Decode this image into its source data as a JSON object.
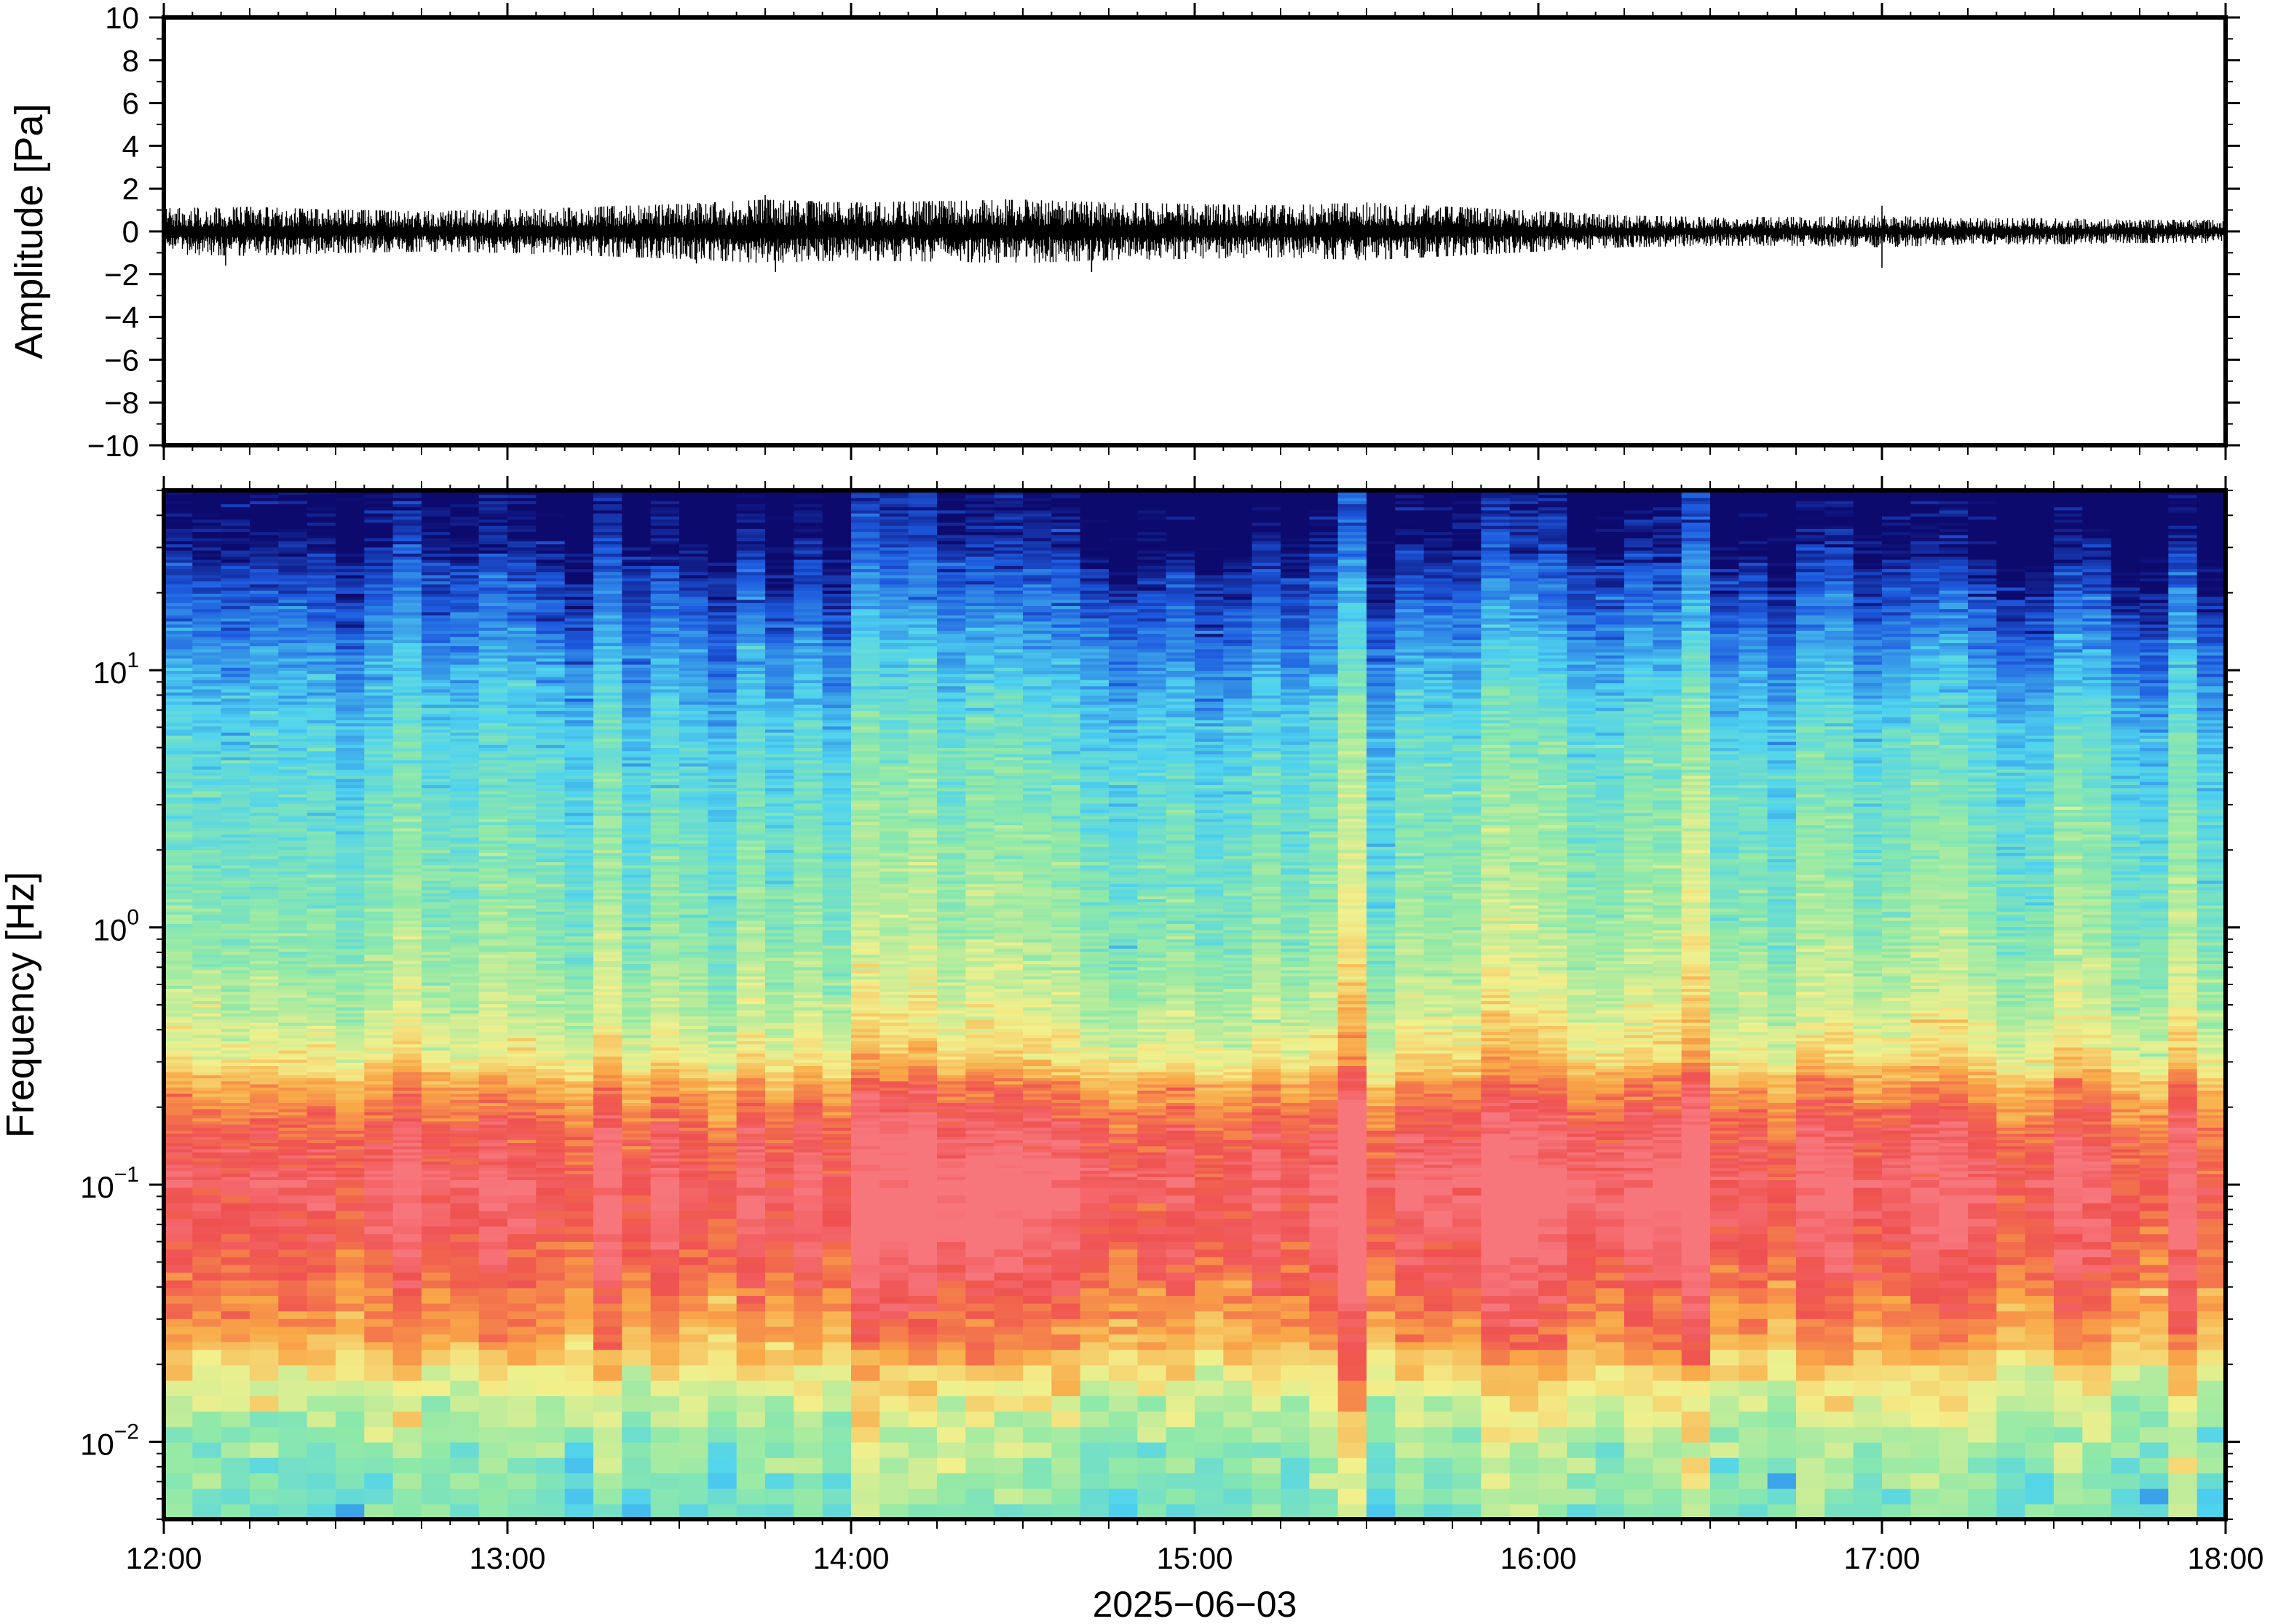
{
  "chart_data": [
    {
      "type": "line",
      "panel": "waveform",
      "ylabel": "Amplitude [Pa]",
      "ylim": [
        -10,
        10
      ],
      "yticks": [
        -10,
        -8,
        -6,
        -4,
        -2,
        0,
        2,
        4,
        6,
        8,
        10
      ],
      "ytick_labels": [
        "−10",
        "−8",
        "−6",
        "−4",
        "−2",
        "0",
        "2",
        "4",
        "6",
        "8",
        "10"
      ],
      "xlim_hours": [
        12,
        18
      ],
      "envelope": {
        "x_hours": [
          12.0,
          12.25,
          12.5,
          12.75,
          13.0,
          13.25,
          13.5,
          13.75,
          14.0,
          14.25,
          14.5,
          14.75,
          15.0,
          15.25,
          15.5,
          15.75,
          16.0,
          16.25,
          16.5,
          16.75,
          17.0,
          17.25,
          17.5,
          17.75,
          18.0
        ],
        "amplitude_pa": [
          0.8,
          0.85,
          0.75,
          0.7,
          0.75,
          0.85,
          0.95,
          1.1,
          1.0,
          1.05,
          1.1,
          1.0,
          0.95,
          0.9,
          1.0,
          0.85,
          0.7,
          0.55,
          0.5,
          0.5,
          0.55,
          0.45,
          0.45,
          0.4,
          0.4
        ]
      },
      "peaks": [
        {
          "x_hours": 12.18,
          "value": -1.6
        },
        {
          "x_hours": 13.55,
          "value": -1.5
        },
        {
          "x_hours": 13.75,
          "value": 1.7
        },
        {
          "x_hours": 13.78,
          "value": -1.9
        },
        {
          "x_hours": 14.45,
          "value": 1.5
        },
        {
          "x_hours": 14.7,
          "value": -1.9
        },
        {
          "x_hours": 15.4,
          "value": 1.3
        },
        {
          "x_hours": 17.0,
          "value": 1.2
        },
        {
          "x_hours": 17.0,
          "value": -1.7
        }
      ]
    },
    {
      "type": "heatmap",
      "panel": "spectrogram",
      "ylabel": "Frequency [Hz]",
      "yscale": "log",
      "ylim": [
        0.005,
        50
      ],
      "yticks": [
        {
          "base": "10",
          "exp": "−2",
          "value": 0.01
        },
        {
          "base": "10",
          "exp": "−1",
          "value": 0.1
        },
        {
          "base": "10",
          "exp": "0",
          "value": 1
        },
        {
          "base": "10",
          "exp": "1",
          "value": 10
        }
      ],
      "colormap": "rainbow (blue = low, red = high)",
      "colors": {
        "low": "#0d0a6e",
        "blue": "#1d5adf",
        "cyan": "#4fd3ef",
        "green": "#8fe9a8",
        "yellow": "#f2f08c",
        "orange": "#f9a948",
        "red": "#ef5150",
        "high": "#f7767c"
      },
      "xlim_hours": [
        12,
        18
      ],
      "profile_log10_hz": [
        -2.3,
        -2.0,
        -1.8,
        -1.6,
        -1.4,
        -1.2,
        -1.0,
        -0.8,
        -0.6,
        -0.5,
        -0.3,
        0.0,
        0.4,
        0.8,
        1.0,
        1.2,
        1.4,
        1.5,
        1.7
      ],
      "profile_level": [
        0.4,
        0.48,
        0.6,
        0.78,
        0.86,
        0.93,
        0.96,
        0.9,
        0.76,
        0.64,
        0.54,
        0.46,
        0.4,
        0.33,
        0.26,
        0.18,
        0.1,
        0.04,
        0.0
      ]
    }
  ],
  "xaxis": {
    "tick_labels": [
      "12:00",
      "13:00",
      "14:00",
      "15:00",
      "16:00",
      "17:00",
      "18:00"
    ],
    "tick_hours": [
      12,
      13,
      14,
      15,
      16,
      17,
      18
    ],
    "date_label": "2025−06−03"
  }
}
